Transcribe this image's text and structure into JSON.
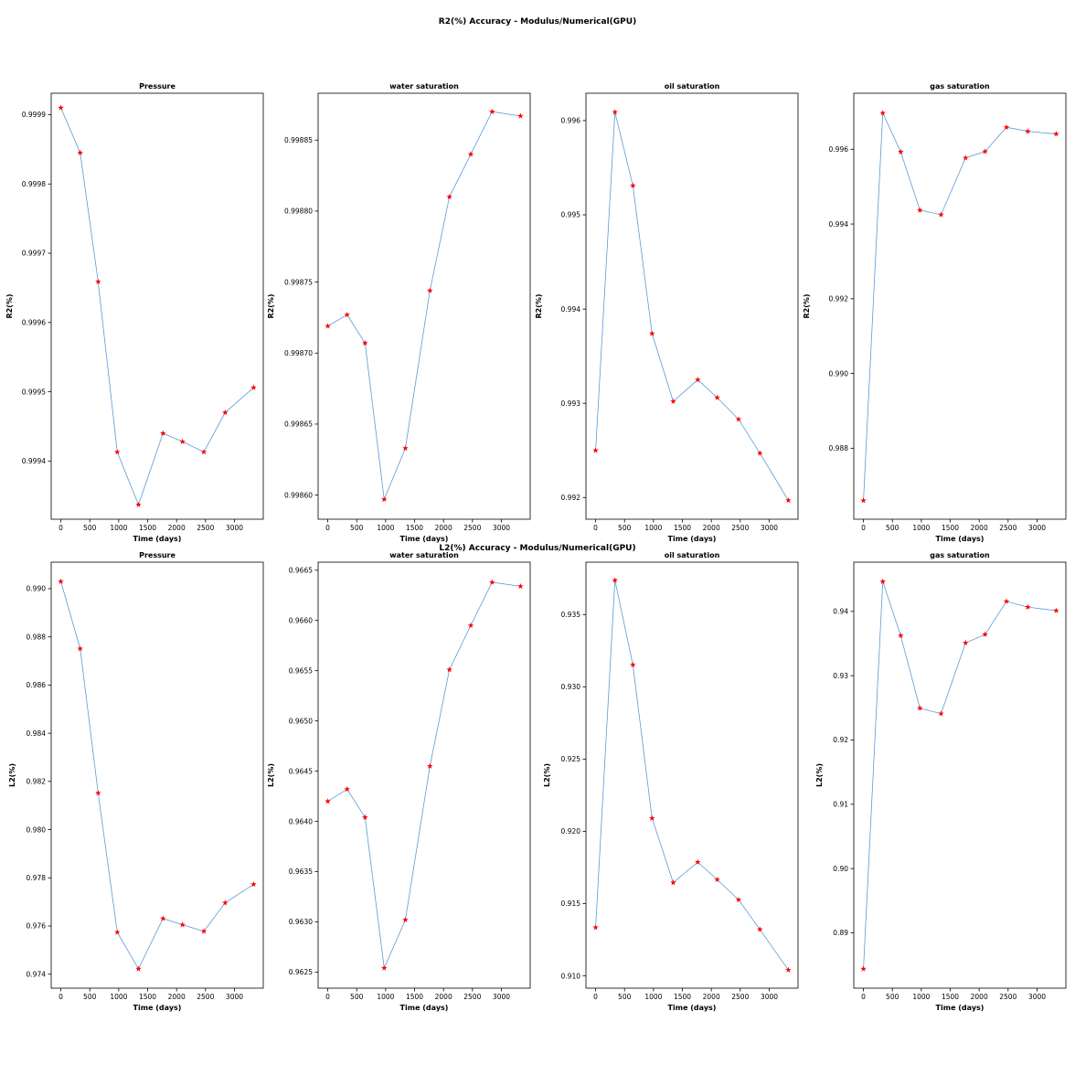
{
  "figure": {
    "titles": [
      "R2(%) Accuracy - Modulus/Numerical(GPU)",
      "L2(%) Accuracy - Modulus/Numerical(GPU)"
    ]
  },
  "colors": {
    "line": "#5a9bd5",
    "marker": "#ff0000",
    "frame": "#000000"
  },
  "marker": "star",
  "chart_data": [
    {
      "type": "line",
      "title": "Pressure",
      "xlabel": "Time (days)",
      "ylabel": "R2(%)",
      "x": [
        0,
        334,
        644,
        975,
        1341,
        1765,
        2102,
        2471,
        2839,
        3331
      ],
      "values": [
        0.99991,
        0.999845,
        0.999659,
        0.999413,
        0.999337,
        0.99944,
        0.999428,
        0.999413,
        0.99947,
        0.999506
      ],
      "xticks": [
        0,
        500,
        1000,
        1500,
        2000,
        2500,
        3000
      ],
      "yticks": [
        0.9994,
        0.9995,
        0.9996,
        0.9997,
        0.9998,
        0.9999
      ],
      "ytick_labels": [
        "0.9994",
        "0.9995",
        "0.9996",
        "0.9997",
        "0.9998",
        "0.9999"
      ],
      "xlim": [
        -167,
        3498
      ],
      "ylim": [
        0.999316,
        0.999931
      ],
      "grid": false
    },
    {
      "type": "line",
      "title": "water saturation",
      "xlabel": "Time (days)",
      "ylabel": "R2(%)",
      "x": [
        0,
        334,
        644,
        975,
        1341,
        1765,
        2102,
        2471,
        2839,
        3331
      ],
      "values": [
        0.998719,
        0.998727,
        0.998707,
        0.998597,
        0.998633,
        0.998744,
        0.99881,
        0.99884,
        0.99887,
        0.998867
      ],
      "xticks": [
        0,
        500,
        1000,
        1500,
        2000,
        2500,
        3000
      ],
      "yticks": [
        0.9986,
        0.99865,
        0.9987,
        0.99875,
        0.9988,
        0.99885
      ],
      "ytick_labels": [
        "0.99860",
        "0.99865",
        "0.99870",
        "0.99875",
        "0.99880",
        "0.99885"
      ],
      "xlim": [
        -167,
        3498
      ],
      "ylim": [
        0.998583,
        0.998883
      ],
      "grid": false
    },
    {
      "type": "line",
      "title": "oil saturation",
      "xlabel": "Time (days)",
      "ylabel": "R2(%)",
      "x": [
        0,
        334,
        644,
        975,
        1341,
        1765,
        2102,
        2471,
        2839,
        3331
      ],
      "values": [
        0.9925,
        0.99609,
        0.99531,
        0.99374,
        0.99302,
        0.99325,
        0.99306,
        0.99283,
        0.99247,
        0.99197
      ],
      "xticks": [
        0,
        500,
        1000,
        1500,
        2000,
        2500,
        3000
      ],
      "yticks": [
        0.992,
        0.993,
        0.994,
        0.995,
        0.996
      ],
      "ytick_labels": [
        "0.992",
        "0.993",
        "0.994",
        "0.995",
        "0.996"
      ],
      "xlim": [
        -167,
        3498
      ],
      "ylim": [
        0.99177,
        0.99629
      ],
      "grid": false
    },
    {
      "type": "line",
      "title": "gas saturation",
      "xlabel": "Time (days)",
      "ylabel": "R2(%)",
      "x": [
        0,
        334,
        644,
        975,
        1341,
        1765,
        2102,
        2471,
        2839,
        3331
      ],
      "values": [
        0.9866,
        0.99697,
        0.99593,
        0.99437,
        0.99425,
        0.99577,
        0.99594,
        0.99659,
        0.99648,
        0.99641
      ],
      "xticks": [
        0,
        500,
        1000,
        1500,
        2000,
        2500,
        3000
      ],
      "yticks": [
        0.988,
        0.99,
        0.992,
        0.994,
        0.996
      ],
      "ytick_labels": [
        "0.988",
        "0.990",
        "0.992",
        "0.994",
        "0.996"
      ],
      "xlim": [
        -167,
        3498
      ],
      "ylim": [
        0.9861,
        0.9975
      ],
      "grid": false
    },
    {
      "type": "line",
      "title": "Pressure",
      "xlabel": "Time (days)",
      "ylabel": "L2(%)",
      "x": [
        0,
        334,
        644,
        975,
        1341,
        1765,
        2102,
        2471,
        2839,
        3331
      ],
      "values": [
        0.9903,
        0.98751,
        0.98152,
        0.97574,
        0.97422,
        0.97631,
        0.97605,
        0.97578,
        0.97696,
        0.97773
      ],
      "xticks": [
        0,
        500,
        1000,
        1500,
        2000,
        2500,
        3000
      ],
      "yticks": [
        0.974,
        0.976,
        0.978,
        0.98,
        0.982,
        0.984,
        0.986,
        0.988,
        0.99
      ],
      "ytick_labels": [
        "0.974",
        "0.976",
        "0.978",
        "0.980",
        "0.982",
        "0.984",
        "0.986",
        "0.988",
        "0.990"
      ],
      "xlim": [
        -167,
        3498
      ],
      "ylim": [
        0.97342,
        0.9911
      ],
      "grid": false
    },
    {
      "type": "line",
      "title": "water saturation",
      "xlabel": "Time (days)",
      "ylabel": "L2(%)",
      "x": [
        0,
        334,
        644,
        975,
        1341,
        1765,
        2102,
        2471,
        2839,
        3331
      ],
      "values": [
        0.9642,
        0.96432,
        0.96404,
        0.96254,
        0.96302,
        0.96455,
        0.96551,
        0.96595,
        0.96638,
        0.96634
      ],
      "xticks": [
        0,
        500,
        1000,
        1500,
        2000,
        2500,
        3000
      ],
      "yticks": [
        0.9625,
        0.963,
        0.9635,
        0.964,
        0.9645,
        0.965,
        0.9655,
        0.966,
        0.9665
      ],
      "ytick_labels": [
        "0.9625",
        "0.9630",
        "0.9635",
        "0.9640",
        "0.9645",
        "0.9650",
        "0.9655",
        "0.9660",
        "0.9665"
      ],
      "xlim": [
        -167,
        3498
      ],
      "ylim": [
        0.96234,
        0.96658
      ],
      "grid": false
    },
    {
      "type": "line",
      "title": "oil saturation",
      "xlabel": "Time (days)",
      "ylabel": "L2(%)",
      "x": [
        0,
        334,
        644,
        975,
        1341,
        1765,
        2102,
        2471,
        2839,
        3331
      ],
      "values": [
        0.91335,
        0.93737,
        0.93152,
        0.92091,
        0.91645,
        0.91787,
        0.91666,
        0.91526,
        0.91321,
        0.91041
      ],
      "xticks": [
        0,
        500,
        1000,
        1500,
        2000,
        2500,
        3000
      ],
      "yticks": [
        0.91,
        0.915,
        0.92,
        0.925,
        0.93,
        0.935
      ],
      "ytick_labels": [
        "0.910",
        "0.915",
        "0.920",
        "0.925",
        "0.930",
        "0.935"
      ],
      "xlim": [
        -167,
        3498
      ],
      "ylim": [
        0.90915,
        0.93862
      ],
      "grid": false
    },
    {
      "type": "line",
      "title": "gas saturation",
      "xlabel": "Time (days)",
      "ylabel": "L2(%)",
      "x": [
        0,
        334,
        644,
        975,
        1341,
        1765,
        2102,
        2471,
        2839,
        3331
      ],
      "values": [
        0.8844,
        0.94465,
        0.93623,
        0.92494,
        0.92409,
        0.9351,
        0.93641,
        0.94155,
        0.94067,
        0.94012
      ],
      "xticks": [
        0,
        500,
        1000,
        1500,
        2000,
        2500,
        3000
      ],
      "yticks": [
        0.89,
        0.9,
        0.91,
        0.92,
        0.93,
        0.94
      ],
      "ytick_labels": [
        "0.89",
        "0.90",
        "0.91",
        "0.92",
        "0.93",
        "0.94"
      ],
      "xlim": [
        -167,
        3498
      ],
      "ylim": [
        0.8814,
        0.94765
      ],
      "grid": false
    }
  ]
}
